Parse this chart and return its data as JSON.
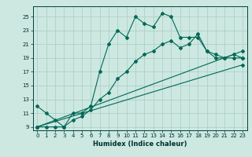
{
  "xlabel": "Humidex (Indice chaleur)",
  "bg_color": "#cce8e0",
  "grid_color": "#aaccc4",
  "line_color": "#006858",
  "xlim": [
    -0.5,
    23.5
  ],
  "ylim": [
    8.5,
    26.5
  ],
  "xticks": [
    0,
    1,
    2,
    3,
    4,
    5,
    6,
    7,
    8,
    9,
    10,
    11,
    12,
    13,
    14,
    15,
    16,
    17,
    18,
    19,
    20,
    21,
    22,
    23
  ],
  "yticks": [
    9,
    11,
    13,
    15,
    17,
    19,
    21,
    23,
    25
  ],
  "line1_x": [
    0,
    1,
    2,
    3,
    4,
    5,
    6,
    7,
    8,
    9,
    10,
    11,
    12,
    13,
    14,
    15,
    16,
    17,
    18,
    19,
    20,
    21,
    22,
    23
  ],
  "line1_y": [
    12,
    11,
    10,
    9,
    11,
    11,
    12,
    17,
    21,
    23,
    22,
    25,
    24,
    23.5,
    25.5,
    25,
    22,
    22,
    22,
    20,
    19,
    19,
    19,
    19
  ],
  "line2_x": [
    0,
    1,
    2,
    3,
    4,
    5,
    6,
    7,
    8,
    9,
    10,
    11,
    12,
    13,
    14,
    15,
    16,
    17,
    18,
    19,
    20,
    21,
    22,
    23
  ],
  "line2_y": [
    9,
    9,
    9,
    9,
    10,
    10.5,
    11.5,
    13,
    14,
    16,
    17,
    18.5,
    19.5,
    20,
    21,
    21.5,
    20.5,
    21,
    22.5,
    20,
    19.5,
    19,
    19.5,
    19
  ],
  "line3_x": [
    0,
    23
  ],
  "line3_y": [
    9,
    18
  ],
  "line4_x": [
    0,
    23
  ],
  "line4_y": [
    9,
    20
  ],
  "xlabel_fontsize": 6,
  "tick_fontsize": 5,
  "linewidth": 0.8,
  "markersize": 2.0
}
